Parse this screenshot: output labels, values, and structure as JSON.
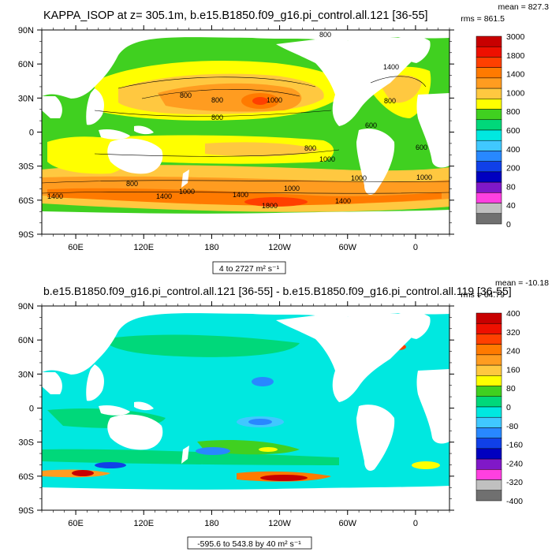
{
  "panels": [
    {
      "title": "KAPPA_ISOP at z= 305.1m, b.e15.B1850.f09_g16.pi_control.all.121 [36-55]",
      "stats_mean": "mean = 827.3",
      "stats_rms": "rms = 861.5",
      "range_label": "4 to 2727 m² s⁻¹"
    },
    {
      "title": "b.e15.B1850.f09_g16.pi_control.all.121 [36-55] - b.e15.B1850.f09_g16.pi_control.all.119 [36-55]",
      "stats_mean": "mean = -10.18",
      "stats_rms": "rms = 64.79",
      "range_label": "-595.6 to 543.8 by 40 m² s⁻¹"
    }
  ],
  "chart_data": [
    {
      "type": "heatmap",
      "title": "KAPPA_ISOP at z= 305.1m, b.e15.B1850.f09_g16.pi_control.all.121 [36-55]",
      "xlabels": [
        "60E",
        "120E",
        "180",
        "120W",
        "60W",
        "0"
      ],
      "ylabels": [
        "90N",
        "60N",
        "30N",
        "0",
        "30S",
        "60S",
        "90S"
      ],
      "colorbar": {
        "labels": [
          "3000",
          "1800",
          "1400",
          "1000",
          "800",
          "600",
          "400",
          "200",
          "80",
          "40",
          "0"
        ],
        "colors": [
          "#c80000",
          "#ee1000",
          "#ff4000",
          "#ff7a00",
          "#ff9c20",
          "#ffc840",
          "#ffff00",
          "#40d020",
          "#00d87a",
          "#00e8e0",
          "#40c8ff",
          "#2888ff",
          "#1040e8",
          "#0000c0",
          "#8018c8",
          "#ff40e0",
          "#c0c0c0",
          "#707070"
        ]
      },
      "contour_labels": [
        "800",
        "800",
        "800",
        "800",
        "800",
        "1000",
        "1000",
        "600",
        "600",
        "1000",
        "1000",
        "1400",
        "1400",
        "1000",
        "1400",
        "1400",
        "1800",
        "800",
        "1000",
        "1400",
        "800"
      ],
      "stats": {
        "mean": 827.3,
        "rms": 861.5
      },
      "range": [
        4,
        2727
      ]
    },
    {
      "type": "heatmap",
      "title": "b.e15.B1850.f09_g16.pi_control.all.121 [36-55] - b.e15.B1850.f09_g16.pi_control.all.119 [36-55]",
      "xlabels": [
        "60E",
        "120E",
        "180",
        "120W",
        "60W",
        "0"
      ],
      "ylabels": [
        "90N",
        "60N",
        "30N",
        "0",
        "30S",
        "60S",
        "90S"
      ],
      "colorbar": {
        "labels": [
          "400",
          "320",
          "240",
          "160",
          "80",
          "0",
          "-80",
          "-160",
          "-240",
          "-320",
          "-400"
        ],
        "colors": [
          "#c80000",
          "#ee1000",
          "#ff4000",
          "#ff7a00",
          "#ff9c20",
          "#ffc840",
          "#ffff00",
          "#40d020",
          "#00d87a",
          "#00e8e0",
          "#40c8ff",
          "#2888ff",
          "#1040e8",
          "#0000c0",
          "#8018c8",
          "#ff40e0",
          "#c0c0c0",
          "#707070"
        ]
      },
      "stats": {
        "mean": -10.18,
        "rms": 64.79
      },
      "range": [
        -595.6,
        543.8
      ],
      "contour_interval": 40
    }
  ]
}
